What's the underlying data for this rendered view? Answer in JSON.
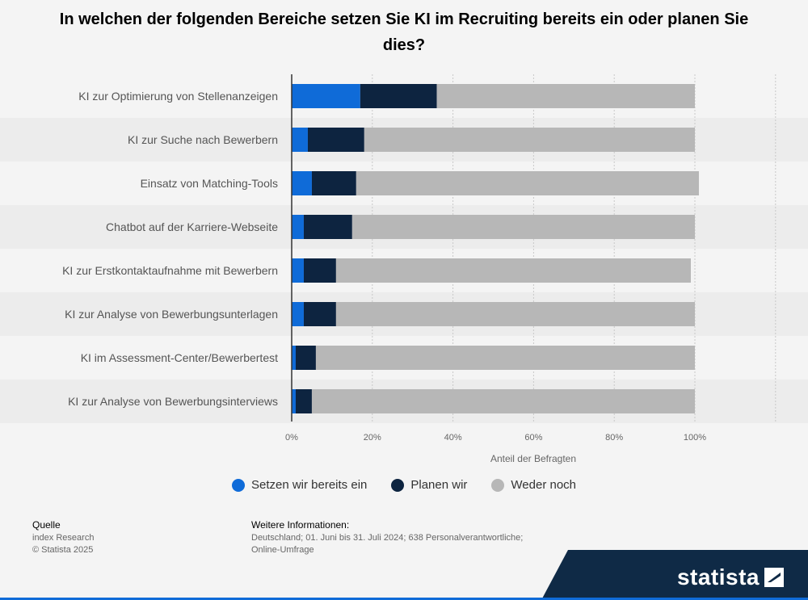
{
  "title": "In welchen der folgenden Bereiche setzen Sie KI im Recruiting bereits ein oder planen Sie dies?",
  "chart_data": {
    "type": "bar",
    "orientation": "horizontal",
    "stacked": true,
    "categories": [
      "KI zur Optimierung von Stellenanzeigen",
      "KI zur Suche nach Bewerbern",
      "Einsatz von Matching-Tools",
      "Chatbot auf der Karriere-Webseite",
      "KI zur Erstkontaktaufnahme mit Bewerbern",
      "KI zur Analyse von Bewerbungsunterlagen",
      "KI im Assessment-Center/Bewerbertest",
      "KI zur Analyse von Bewerbungsinterviews"
    ],
    "series": [
      {
        "name": "Setzen wir bereits ein",
        "color": "#0f6bd8",
        "values": [
          17,
          4,
          5,
          3,
          3,
          3,
          1,
          1
        ]
      },
      {
        "name": "Planen wir",
        "color": "#0d2440",
        "values": [
          19,
          14,
          11,
          12,
          8,
          8,
          5,
          4
        ]
      },
      {
        "name": "Weder noch",
        "color": "#b7b7b7",
        "values": [
          64,
          82,
          85,
          85,
          88,
          89,
          94,
          95
        ]
      }
    ],
    "xlabel": "Anteil der Befragten",
    "xlim": [
      0,
      120
    ],
    "xticks": [
      0,
      20,
      40,
      60,
      80,
      100
    ],
    "xtick_labels": [
      "0%",
      "20%",
      "40%",
      "60%",
      "80%",
      "100%"
    ],
    "grid": true,
    "legend_position": "bottom"
  },
  "footer": {
    "source_heading": "Quelle",
    "source_line1": "index Research",
    "source_line2": "© Statista 2025",
    "info_heading": "Weitere Informationen:",
    "info_line1": "Deutschland; 01. Juni bis 31. Juli 2024; 638 Personalverantwortliche;",
    "info_line2": "Online-Umfrage"
  },
  "brand": "statista"
}
